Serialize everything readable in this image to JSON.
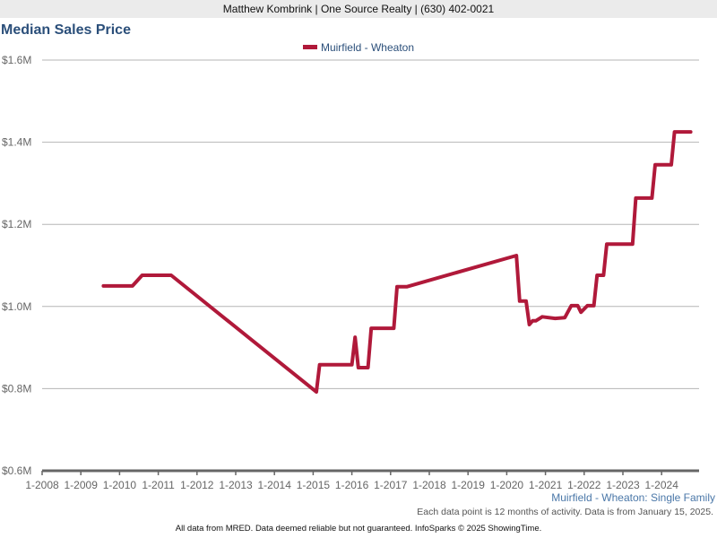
{
  "header": {
    "text": "Matthew Kombrink | One Source Realty | (630) 402-0021"
  },
  "chart_data": {
    "type": "line",
    "title": "Median Sales Price",
    "xlabel": "",
    "ylabel": "",
    "ylim": [
      0.6,
      1.6
    ],
    "yticks": [
      "$0.6M",
      "$0.8M",
      "$1.0M",
      "$1.2M",
      "$1.4M",
      "$1.6M"
    ],
    "ytick_values": [
      0.6,
      0.8,
      1.0,
      1.2,
      1.4,
      1.6
    ],
    "xticks": [
      "1-2008",
      "1-2009",
      "1-2010",
      "1-2011",
      "1-2012",
      "1-2013",
      "1-2014",
      "1-2015",
      "1-2016",
      "1-2017",
      "1-2018",
      "1-2019",
      "1-2020",
      "1-2021",
      "1-2022",
      "1-2023",
      "1-2024"
    ],
    "grid": true,
    "legend_placement": "top-center",
    "series": [
      {
        "name": "Muirfield - Wheaton",
        "color": "#b0193a",
        "unit": "$M",
        "points": [
          [
            "2009-08",
            1.05
          ],
          [
            "2010-05",
            1.05
          ],
          [
            "2010-08",
            1.076
          ],
          [
            "2011-05",
            1.076
          ],
          [
            "2015-02",
            0.792
          ],
          [
            "2015-03",
            0.858
          ],
          [
            "2016-01",
            0.858
          ],
          [
            "2016-02",
            0.925
          ],
          [
            "2016-03",
            0.851
          ],
          [
            "2016-06",
            0.851
          ],
          [
            "2016-07",
            0.947
          ],
          [
            "2017-02",
            0.947
          ],
          [
            "2017-03",
            1.048
          ],
          [
            "2017-06",
            1.048
          ],
          [
            "2020-04",
            1.124
          ],
          [
            "2020-05",
            1.013
          ],
          [
            "2020-07",
            1.013
          ],
          [
            "2020-08",
            0.956
          ],
          [
            "2020-09",
            0.965
          ],
          [
            "2020-10",
            0.965
          ],
          [
            "2020-12",
            0.975
          ],
          [
            "2021-04",
            0.971
          ],
          [
            "2021-07",
            0.973
          ],
          [
            "2021-09",
            1.002
          ],
          [
            "2021-11",
            1.002
          ],
          [
            "2021-12",
            0.986
          ],
          [
            "2022-02",
            1.002
          ],
          [
            "2022-04",
            1.002
          ],
          [
            "2022-05",
            1.076
          ],
          [
            "2022-07",
            1.076
          ],
          [
            "2022-08",
            1.152
          ],
          [
            "2023-04",
            1.152
          ],
          [
            "2023-05",
            1.264
          ],
          [
            "2023-10",
            1.264
          ],
          [
            "2023-11",
            1.345
          ],
          [
            "2024-04",
            1.345
          ],
          [
            "2024-05",
            1.425
          ],
          [
            "2024-10",
            1.425
          ]
        ]
      }
    ]
  },
  "subtitle": "Muirfield - Wheaton: Single Family",
  "note": "Each data point is 12 months of activity. Data is from January 15, 2025.",
  "footer": "All data from MRED. Data deemed reliable but not guaranteed. InfoSparks © 2025 ShowingTime."
}
